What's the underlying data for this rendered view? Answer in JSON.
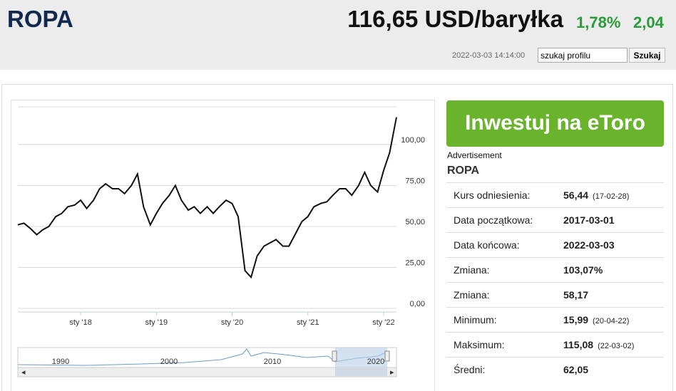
{
  "header": {
    "title": "ROPA",
    "price": "116,65 USD/baryłka",
    "change_pct": "1,78%",
    "change_abs": "2,04",
    "timestamp": "2022-03-03 14:14:00",
    "search_placeholder": "szukaj profilu",
    "search_button": "Szukaj"
  },
  "chart_data": {
    "type": "line",
    "color": "#111111",
    "x": [
      2017.17,
      2017.25,
      2017.33,
      2017.42,
      2017.5,
      2017.58,
      2017.67,
      2017.75,
      2017.83,
      2017.92,
      2018.0,
      2018.08,
      2018.17,
      2018.25,
      2018.33,
      2018.42,
      2018.5,
      2018.58,
      2018.67,
      2018.75,
      2018.83,
      2018.92,
      2019.0,
      2019.08,
      2019.17,
      2019.25,
      2019.33,
      2019.42,
      2019.5,
      2019.58,
      2019.67,
      2019.75,
      2019.83,
      2019.92,
      2020.0,
      2020.08,
      2020.17,
      2020.25,
      2020.33,
      2020.42,
      2020.5,
      2020.58,
      2020.67,
      2020.75,
      2020.83,
      2020.92,
      2021.0,
      2021.08,
      2021.17,
      2021.25,
      2021.33,
      2021.42,
      2021.5,
      2021.58,
      2021.67,
      2021.75,
      2021.83,
      2021.92,
      2022.0,
      2022.08,
      2022.17
    ],
    "values": [
      51,
      52,
      49,
      45,
      48,
      50,
      56,
      58,
      62,
      63,
      66,
      61,
      66,
      73,
      76,
      73,
      73,
      70,
      75,
      82,
      62,
      51,
      58,
      64,
      69,
      75,
      66,
      60,
      62,
      58,
      62,
      58,
      62,
      66,
      64,
      56,
      23,
      19,
      32,
      38,
      40,
      42,
      38,
      38,
      45,
      53,
      56,
      62,
      64,
      65,
      69,
      73,
      73,
      69,
      75,
      83,
      75,
      71,
      84,
      95,
      116.65
    ],
    "xlim": [
      2017.17,
      2022.17
    ],
    "ylim": [
      0,
      123
    ],
    "xticks": [
      {
        "value": 2018.0,
        "label": "sty '18"
      },
      {
        "value": 2019.0,
        "label": "sty '19"
      },
      {
        "value": 2020.0,
        "label": "sty '20"
      },
      {
        "value": 2021.0,
        "label": "sty '21"
      },
      {
        "value": 2022.0,
        "label": "sty '22"
      }
    ],
    "yticks": [
      {
        "value": 0,
        "label": "0,00"
      },
      {
        "value": 25,
        "label": "25,00"
      },
      {
        "value": 50,
        "label": "50,00"
      },
      {
        "value": 75,
        "label": "75,00"
      },
      {
        "value": 100,
        "label": "100,00"
      }
    ],
    "grid": true
  },
  "navigator": {
    "labels": [
      "1990",
      "2000",
      "2010",
      "2020"
    ]
  },
  "sidebar": {
    "ad_button": "Inwestuj na eToro",
    "ad_label": "Advertisement",
    "name": "ROPA",
    "stats": [
      [
        "Kurs odniesienia:",
        "56,44",
        "(17-02-28)"
      ],
      [
        "Data początkowa:",
        "2017-03-01"
      ],
      [
        "Data końcowa:",
        "2022-03-03"
      ],
      [
        "Zmiana:",
        "103,07%"
      ],
      [
        "Zmiana:",
        "58,17"
      ],
      [
        "Minimum:",
        "15,99",
        "(20-04-22)"
      ],
      [
        "Maksimum:",
        "115,08",
        "(22-03-02)"
      ],
      [
        "Średni:",
        "62,05"
      ]
    ]
  }
}
